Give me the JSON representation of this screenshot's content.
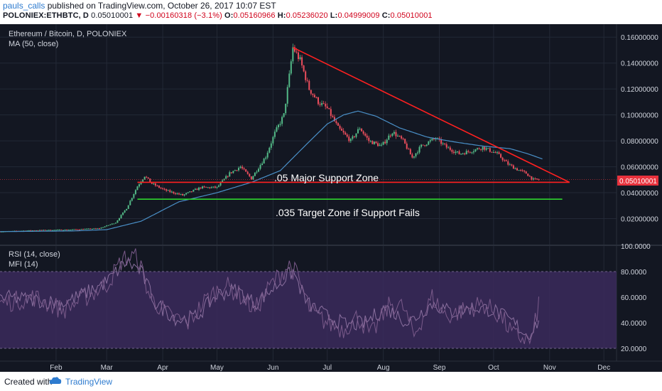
{
  "header": {
    "username": "pauls_calls",
    "published_text": " published on TradingView.com, October 26, 2017 10:07 EST",
    "symbol": "POLONIEX:ETHBTC, D",
    "last": "0.05010001",
    "arrow": "▼",
    "change": "−0.00160318 (−3.1%)",
    "open_label": "O:",
    "open": "0.05160966",
    "high_label": "H:",
    "high": "0.05236020",
    "low_label": "L:",
    "low": "0.04999009",
    "close_label": "C:",
    "close": "0.05010001"
  },
  "main_pane": {
    "title": "Ethereum / Bitcoin, D, POLONIEX",
    "indicator": "MA (50, close)",
    "annotations": {
      "support": ".05 Major Support Zone",
      "target": ".035 Target Zone if Support Fails"
    },
    "price_label": "0.05010001"
  },
  "lower_pane": {
    "rsi_label": "RSI (14, close)",
    "mfi_label": "MFI (14)"
  },
  "footer": {
    "created_with": "Created with",
    "brand": "TradingView"
  },
  "colors": {
    "background": "#131722",
    "grid": "#232936",
    "up": "#53b987",
    "down": "#eb4d5c",
    "ma": "#4a90c8",
    "trendline": "#ff2020",
    "target_line": "#2ed52e",
    "rsi_band": "#3b2a5c",
    "price_tag": "#e7323d"
  },
  "chart_data": [
    {
      "type": "candlestick",
      "title": "Ethereum / Bitcoin, D, POLONIEX",
      "ylim": [
        0,
        0.17
      ],
      "y_ticks": [
        "0.16000000",
        "0.14000000",
        "0.12000000",
        "0.10000000",
        "0.08000000",
        "0.06000000",
        "0.04000000",
        "0.02000000"
      ],
      "x_ticks": [
        "Feb",
        "Mar",
        "Apr",
        "May",
        "Jun",
        "Jul",
        "Aug",
        "Sep",
        "Oct",
        "Nov",
        "Dec"
      ],
      "x_range": [
        "2017-01-01",
        "2017-12-08"
      ],
      "last_price": 0.05010001,
      "candle_keypoints": [
        [
          "2017-01-01",
          0.01
        ],
        [
          "2017-01-20",
          0.011
        ],
        [
          "2017-02-08",
          0.0115
        ],
        [
          "2017-02-25",
          0.0125
        ],
        [
          "2017-03-06",
          0.017
        ],
        [
          "2017-03-12",
          0.028
        ],
        [
          "2017-03-18",
          0.045
        ],
        [
          "2017-03-22",
          0.053
        ],
        [
          "2017-03-26",
          0.047
        ],
        [
          "2017-04-02",
          0.042
        ],
        [
          "2017-04-12",
          0.038
        ],
        [
          "2017-04-22",
          0.044
        ],
        [
          "2017-05-01",
          0.044
        ],
        [
          "2017-05-08",
          0.055
        ],
        [
          "2017-05-14",
          0.06
        ],
        [
          "2017-05-20",
          0.051
        ],
        [
          "2017-05-28",
          0.068
        ],
        [
          "2017-06-02",
          0.086
        ],
        [
          "2017-06-07",
          0.1
        ],
        [
          "2017-06-10",
          0.13
        ],
        [
          "2017-06-12",
          0.152
        ],
        [
          "2017-06-16",
          0.142
        ],
        [
          "2017-06-21",
          0.12
        ],
        [
          "2017-06-26",
          0.11
        ],
        [
          "2017-07-01",
          0.105
        ],
        [
          "2017-07-07",
          0.09
        ],
        [
          "2017-07-14",
          0.08
        ],
        [
          "2017-07-19",
          0.09
        ],
        [
          "2017-07-24",
          0.08
        ],
        [
          "2017-07-31",
          0.076
        ],
        [
          "2017-08-06",
          0.087
        ],
        [
          "2017-08-12",
          0.08
        ],
        [
          "2017-08-17",
          0.067
        ],
        [
          "2017-08-22",
          0.076
        ],
        [
          "2017-08-30",
          0.082
        ],
        [
          "2017-09-05",
          0.075
        ],
        [
          "2017-09-12",
          0.07
        ],
        [
          "2017-09-18",
          0.072
        ],
        [
          "2017-09-25",
          0.075
        ],
        [
          "2017-10-03",
          0.07
        ],
        [
          "2017-10-09",
          0.062
        ],
        [
          "2017-10-14",
          0.058
        ],
        [
          "2017-10-19",
          0.055
        ],
        [
          "2017-10-23",
          0.05
        ],
        [
          "2017-10-26",
          0.0501
        ]
      ],
      "ma50_keypoints": [
        [
          "2017-01-01",
          0.01
        ],
        [
          "2017-02-10",
          0.0105
        ],
        [
          "2017-03-01",
          0.0115
        ],
        [
          "2017-03-20",
          0.018
        ],
        [
          "2017-04-10",
          0.033
        ],
        [
          "2017-05-01",
          0.04
        ],
        [
          "2017-05-20",
          0.048
        ],
        [
          "2017-06-05",
          0.057
        ],
        [
          "2017-06-20",
          0.078
        ],
        [
          "2017-07-01",
          0.093
        ],
        [
          "2017-07-10",
          0.1
        ],
        [
          "2017-07-18",
          0.103
        ],
        [
          "2017-07-28",
          0.099
        ],
        [
          "2017-08-10",
          0.09
        ],
        [
          "2017-08-25",
          0.083
        ],
        [
          "2017-09-10",
          0.079
        ],
        [
          "2017-09-25",
          0.076
        ],
        [
          "2017-10-10",
          0.074
        ],
        [
          "2017-10-20",
          0.07
        ],
        [
          "2017-10-28",
          0.066
        ]
      ],
      "trendlines": [
        {
          "from": [
            "2017-06-12",
            0.152
          ],
          "to": [
            "2017-11-12",
            0.048
          ],
          "color": "#ff2020"
        },
        {
          "from": [
            "2017-03-18",
            0.048
          ],
          "to": [
            "2017-11-12",
            0.048
          ],
          "color": "#ff2020"
        },
        {
          "from": [
            "2017-03-18",
            0.035
          ],
          "to": [
            "2017-11-08",
            0.035
          ],
          "color": "#2ed52e"
        }
      ]
    },
    {
      "type": "line",
      "title": "RSI (14, close) / MFI (14)",
      "ylim": [
        10,
        100
      ],
      "y_ticks": [
        "100.0000",
        "80.0000",
        "60.0000",
        "40.0000",
        "20.0000"
      ],
      "band": [
        20,
        80
      ],
      "rsi_keypoints": [
        [
          "2017-01-01",
          55
        ],
        [
          "2017-01-20",
          60
        ],
        [
          "2017-02-05",
          50
        ],
        [
          "2017-02-20",
          62
        ],
        [
          "2017-03-01",
          70
        ],
        [
          "2017-03-10",
          90
        ],
        [
          "2017-03-18",
          92
        ],
        [
          "2017-03-25",
          60
        ],
        [
          "2017-04-05",
          45
        ],
        [
          "2017-04-15",
          40
        ],
        [
          "2017-04-25",
          58
        ],
        [
          "2017-05-05",
          70
        ],
        [
          "2017-05-15",
          60
        ],
        [
          "2017-05-22",
          50
        ],
        [
          "2017-06-01",
          72
        ],
        [
          "2017-06-10",
          85
        ],
        [
          "2017-06-14",
          78
        ],
        [
          "2017-06-22",
          48
        ],
        [
          "2017-07-01",
          40
        ],
        [
          "2017-07-10",
          35
        ],
        [
          "2017-07-18",
          45
        ],
        [
          "2017-07-25",
          30
        ],
        [
          "2017-08-05",
          55
        ],
        [
          "2017-08-12",
          52
        ],
        [
          "2017-08-18",
          30
        ],
        [
          "2017-08-28",
          60
        ],
        [
          "2017-09-05",
          45
        ],
        [
          "2017-09-15",
          50
        ],
        [
          "2017-09-25",
          55
        ],
        [
          "2017-10-05",
          45
        ],
        [
          "2017-10-12",
          30
        ],
        [
          "2017-10-18",
          28
        ],
        [
          "2017-10-22",
          25
        ],
        [
          "2017-10-26",
          55
        ]
      ],
      "mfi_keypoints": [
        [
          "2017-01-01",
          60
        ],
        [
          "2017-01-20",
          58
        ],
        [
          "2017-02-05",
          55
        ],
        [
          "2017-02-20",
          65
        ],
        [
          "2017-03-01",
          72
        ],
        [
          "2017-03-12",
          88
        ],
        [
          "2017-03-20",
          80
        ],
        [
          "2017-03-28",
          55
        ],
        [
          "2017-04-10",
          42
        ],
        [
          "2017-04-20",
          45
        ],
        [
          "2017-05-01",
          62
        ],
        [
          "2017-05-12",
          66
        ],
        [
          "2017-05-22",
          55
        ],
        [
          "2017-06-02",
          68
        ],
        [
          "2017-06-12",
          80
        ],
        [
          "2017-06-20",
          55
        ],
        [
          "2017-07-01",
          45
        ],
        [
          "2017-07-12",
          38
        ],
        [
          "2017-07-22",
          40
        ],
        [
          "2017-08-02",
          52
        ],
        [
          "2017-08-15",
          40
        ],
        [
          "2017-08-28",
          55
        ],
        [
          "2017-09-08",
          48
        ],
        [
          "2017-09-20",
          52
        ],
        [
          "2017-10-01",
          50
        ],
        [
          "2017-10-12",
          40
        ],
        [
          "2017-10-20",
          30
        ],
        [
          "2017-10-26",
          42
        ]
      ]
    }
  ]
}
